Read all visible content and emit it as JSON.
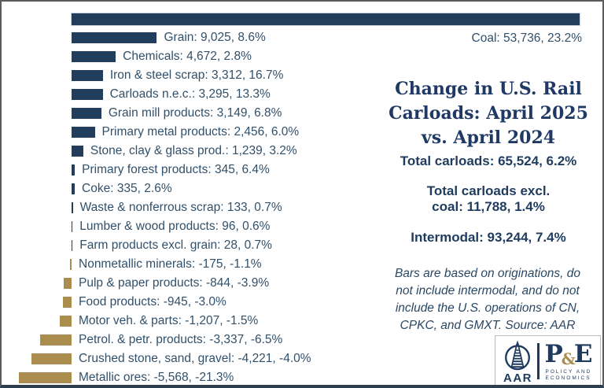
{
  "chart_data": {
    "type": "bar",
    "orientation": "horizontal",
    "title": "Change in U.S. Rail Carloads: April 2025 vs. April 2024",
    "value_axis": {
      "min": -5568,
      "max": 53736,
      "gridlines": false,
      "axis_labels_visible": false
    },
    "positive_color": "#233e5c",
    "negative_color": "#a98c4e",
    "bars": [
      {
        "category": "Coal",
        "value": 53736,
        "pct_change": "23.2%",
        "label": "Coal: 53,736, 23.2%"
      },
      {
        "category": "Grain",
        "value": 9025,
        "pct_change": "8.6%",
        "label": "Grain: 9,025, 8.6%"
      },
      {
        "category": "Chemicals",
        "value": 4672,
        "pct_change": "2.8%",
        "label": "Chemicals: 4,672, 2.8%"
      },
      {
        "category": "Iron & steel scrap",
        "value": 3312,
        "pct_change": "16.7%",
        "label": "Iron & steel scrap: 3,312, 16.7%"
      },
      {
        "category": "Carloads n.e.c.",
        "value": 3295,
        "pct_change": "13.3%",
        "label": "Carloads n.e.c.: 3,295, 13.3%"
      },
      {
        "category": "Grain mill products",
        "value": 3149,
        "pct_change": "6.8%",
        "label": "Grain mill products: 3,149, 6.8%"
      },
      {
        "category": "Primary metal products",
        "value": 2456,
        "pct_change": "6.0%",
        "label": "Primary metal products: 2,456, 6.0%"
      },
      {
        "category": "Stone, clay & glass prod.",
        "value": 1239,
        "pct_change": "3.2%",
        "label": "Stone, clay & glass prod.: 1,239, 3.2%"
      },
      {
        "category": "Primary forest products",
        "value": 345,
        "pct_change": "6.4%",
        "label": "Primary forest products: 345, 6.4%"
      },
      {
        "category": "Coke",
        "value": 335,
        "pct_change": "2.6%",
        "label": "Coke: 335, 2.6%"
      },
      {
        "category": "Waste & nonferrous scrap",
        "value": 133,
        "pct_change": "0.7%",
        "label": "Waste & nonferrous scrap: 133, 0.7%"
      },
      {
        "category": "Lumber & wood products",
        "value": 96,
        "pct_change": "0.6%",
        "label": "Lumber & wood products: 96, 0.6%"
      },
      {
        "category": "Farm products excl. grain",
        "value": 28,
        "pct_change": "0.7%",
        "label": "Farm products excl. grain: 28, 0.7%"
      },
      {
        "category": "Nonmetallic minerals",
        "value": -175,
        "pct_change": "-1.1%",
        "label": "Nonmetallic minerals: -175, -1.1%"
      },
      {
        "category": "Pulp & paper products",
        "value": -844,
        "pct_change": "-3.9%",
        "label": "Pulp & paper products: -844, -3.9%"
      },
      {
        "category": "Food products",
        "value": -945,
        "pct_change": "-3.0%",
        "label": "Food products: -945, -3.0%"
      },
      {
        "category": "Motor veh. & parts",
        "value": -1207,
        "pct_change": "-1.5%",
        "label": "Motor veh. & parts: -1,207, -1.5%"
      },
      {
        "category": "Petrol. & petr. products",
        "value": -3337,
        "pct_change": "-6.5%",
        "label": "Petrol. & petr. products: -3,337, -6.5%"
      },
      {
        "category": "Crushed stone, sand, gravel",
        "value": -4221,
        "pct_change": "-4.0%",
        "label": "Crushed stone, sand, gravel: -4,221, -4.0%"
      },
      {
        "category": "Metallic ores",
        "value": -5568,
        "pct_change": "-21.3%",
        "label": "Metallic ores: -5,568, -21.3%"
      }
    ]
  },
  "panel": {
    "title": "Change in U.S. Rail\nCarloads: April 2025\nvs. April 2024",
    "stat_total": "Total carloads: 65,524, 6.2%",
    "stat_excl_coal": "Total carloads excl.\ncoal: 11,788, 1.4%",
    "stat_intermodal": "Intermodal: 93,244, 7.4%",
    "note": "Bars are based on originations, do\nnot include intermodal, and do not\ninclude the U.S. operations of CN,\nCPKC, and GMXT. Source: AAR"
  },
  "logo": {
    "aar_text": "AAR",
    "pe_p": "P",
    "pe_amp": "&",
    "pe_e": "E",
    "pe_line1": "POLICY AND",
    "pe_line2": "ECONOMICS",
    "navy": "#1e3a5c",
    "gold": "#a98c4e"
  }
}
